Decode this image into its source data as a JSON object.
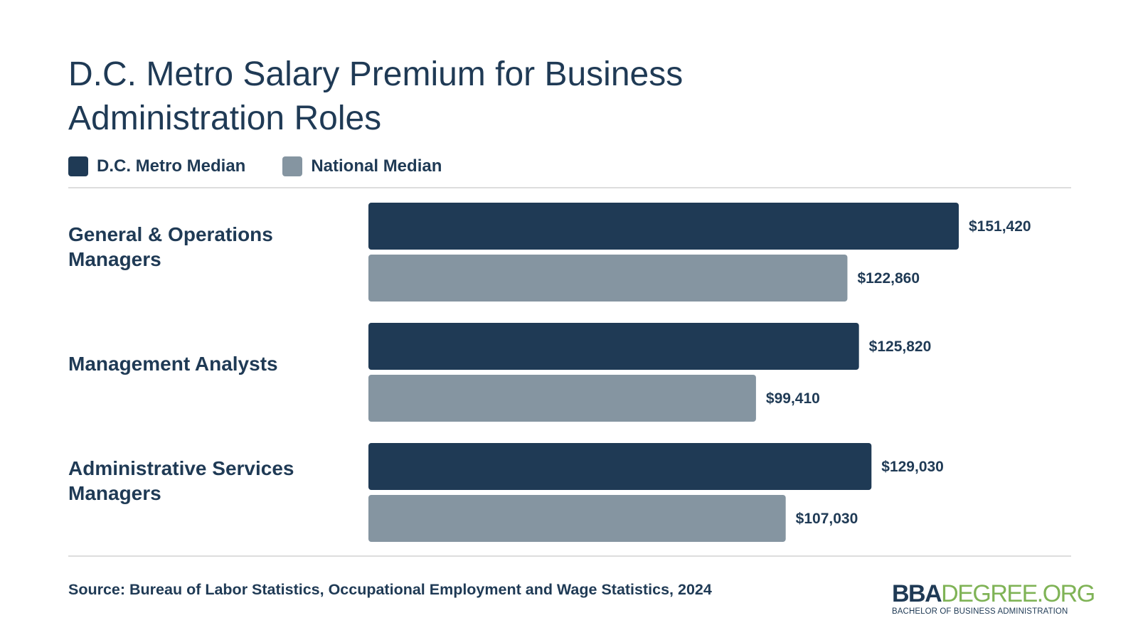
{
  "chart_data": {
    "type": "bar",
    "orientation": "horizontal",
    "title": "D.C. Metro Salary Premium for Business Administration Roles",
    "categories": [
      "General & Operations Managers",
      "Management Analysts",
      "Administrative Services Managers"
    ],
    "series": [
      {
        "name": "D.C. Metro Median",
        "color": "#1f3a55",
        "values": [
          151420,
          125820,
          129030
        ],
        "labels": [
          "$151,420",
          "$125,820",
          "$129,030"
        ]
      },
      {
        "name": "National Median",
        "color": "#8595a1",
        "values": [
          122860,
          99410,
          107030
        ],
        "labels": [
          "$122,860",
          "$99,410",
          "$107,030"
        ]
      }
    ],
    "xlim": [
      0,
      151420
    ],
    "grid": false,
    "legend_position": "top-left"
  },
  "source": "Source: Bureau of Labor Statistics, Occupational Employment and Wage Statistics, 2024",
  "logo": {
    "part1": "BBA",
    "part2": "DEGREE.ORG",
    "tagline": "BACHELOR OF BUSINESS ADMINISTRATION"
  }
}
